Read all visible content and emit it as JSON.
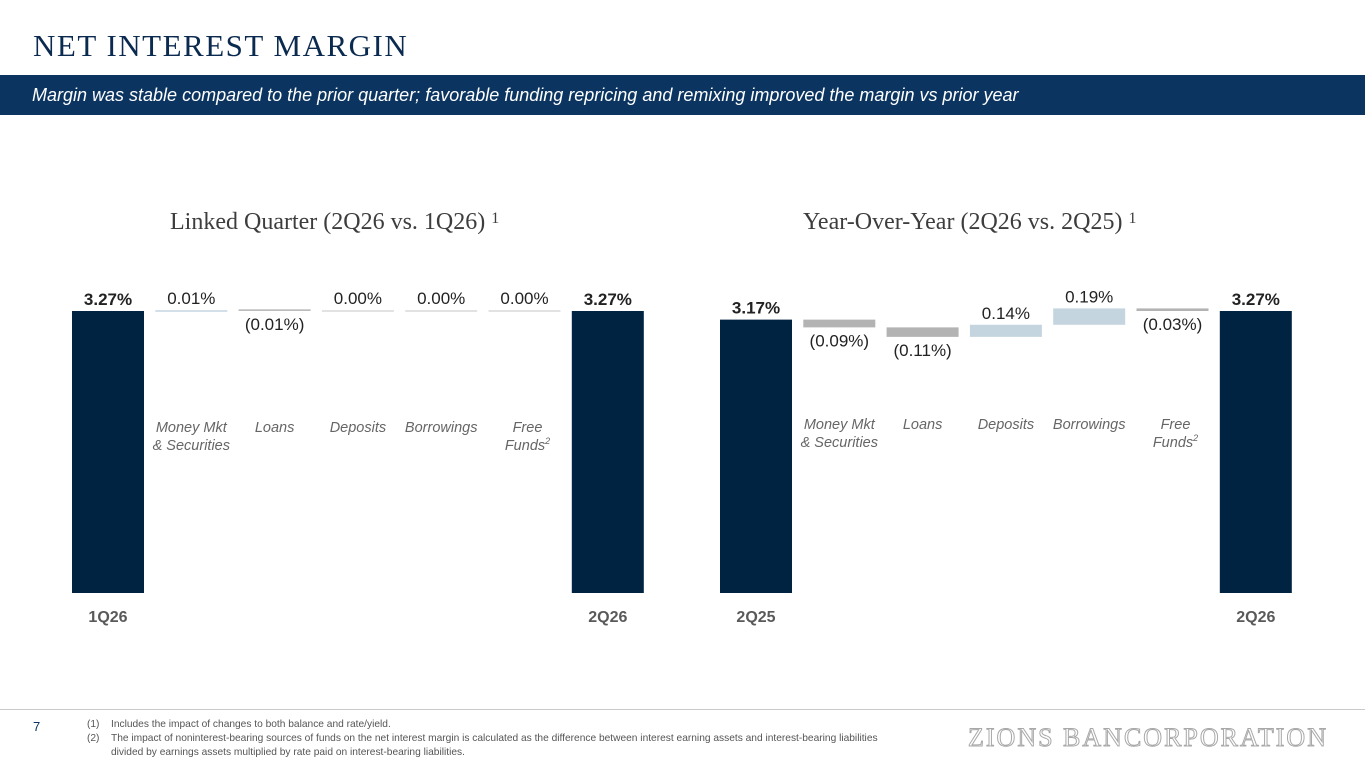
{
  "page": {
    "title": "NET INTEREST MARGIN",
    "subtitle": "Margin was stable compared to the prior quarter; favorable funding repricing and remixing improved the margin vs prior year",
    "page_number": "7",
    "logo_text": "ZIONS BANCORPORATION",
    "footnotes": [
      {
        "num": "(1)",
        "text": "Includes the impact of changes to both balance and rate/yield."
      },
      {
        "num": "(2)",
        "text": "The impact of noninterest-bearing sources of funds on the net interest margin is calculated as the difference between interest earning assets and interest-bearing liabilities divided by earnings assets multiplied by rate paid on interest-bearing liabilities."
      }
    ]
  },
  "colors": {
    "navy": "#002341",
    "negative": "#b3b3b3",
    "positive": "#c5d5e0",
    "neutral": "#d9d9d9"
  },
  "chart_data": [
    {
      "type": "bar",
      "subtype": "waterfall",
      "title": "Linked Quarter (2Q26 vs. 1Q26)",
      "title_superscript": "1",
      "categories": [
        "1Q26",
        "Money Mkt & Securities",
        "Loans",
        "Deposits",
        "Borrowings",
        "Free Funds2",
        "2Q26"
      ],
      "values": [
        3.27,
        0.01,
        -0.01,
        0.0,
        0.0,
        0.0,
        3.27
      ],
      "value_labels": [
        "3.27%",
        "0.01%",
        "(0.01%)",
        "0.00%",
        "0.00%",
        "0.00%",
        "3.27%"
      ],
      "measure": [
        "total",
        "relative",
        "relative",
        "relative",
        "relative",
        "relative",
        "total"
      ]
    },
    {
      "type": "bar",
      "subtype": "waterfall",
      "title": "Year-Over-Year (2Q26 vs. 2Q25)",
      "title_superscript": "1",
      "categories": [
        "2Q25",
        "Money Mkt & Securities",
        "Loans",
        "Deposits",
        "Borrowings",
        "Free Funds2",
        "2Q26"
      ],
      "values": [
        3.17,
        -0.09,
        -0.11,
        0.14,
        0.19,
        -0.03,
        3.27
      ],
      "value_labels": [
        "3.17%",
        "(0.09%)",
        "(0.11%)",
        "0.14%",
        "0.19%",
        "(0.03%)",
        "3.27%"
      ],
      "measure": [
        "total",
        "relative",
        "relative",
        "relative",
        "relative",
        "relative",
        "total"
      ]
    }
  ]
}
